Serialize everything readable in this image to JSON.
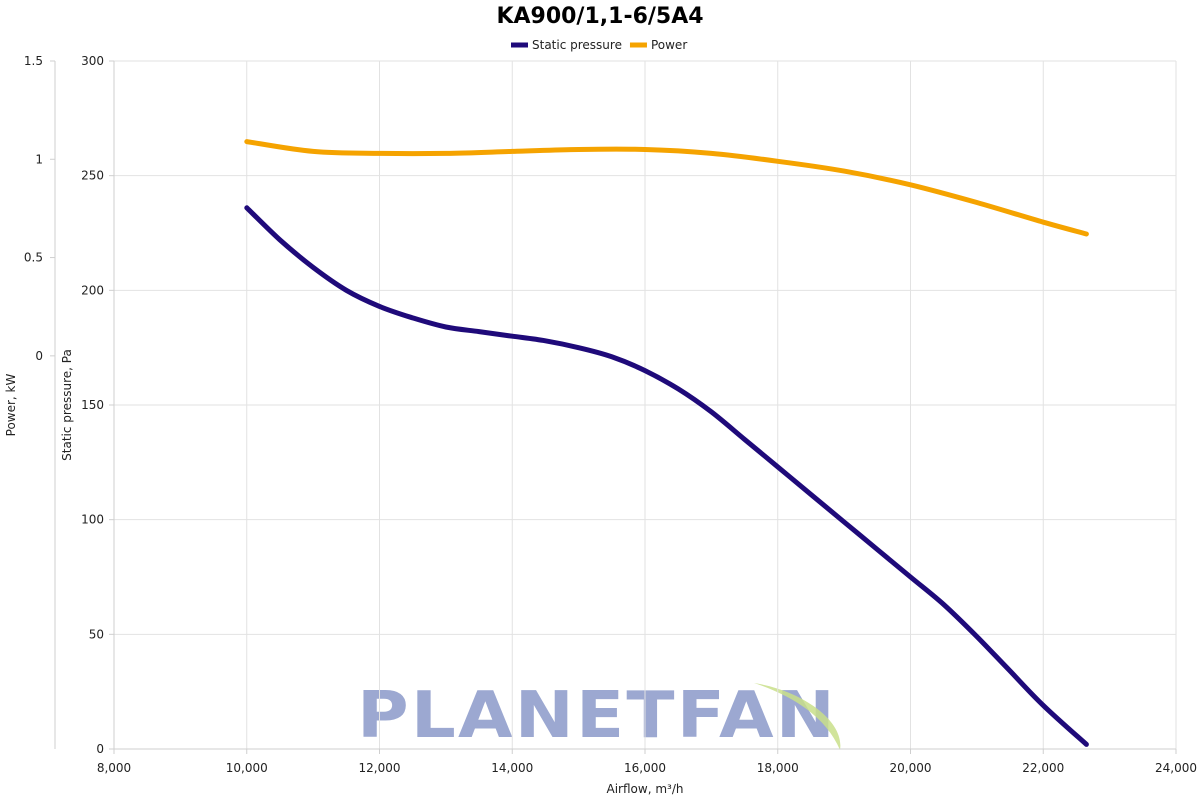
{
  "chart_data": {
    "type": "line",
    "title": "KA900/1,1-6/5A4",
    "xlabel": "Airflow, m³/h",
    "xlim": [
      8000,
      24000
    ],
    "xticks": [
      8000,
      10000,
      12000,
      14000,
      16000,
      18000,
      20000,
      22000,
      24000
    ],
    "xtick_labels": [
      "8,000",
      "10,000",
      "12,000",
      "14,000",
      "16,000",
      "18,000",
      "20,000",
      "22,000",
      "24,000"
    ],
    "y_axes": {
      "pressure": {
        "label": "Static pressure, Pa",
        "ylim": [
          0,
          300
        ],
        "ticks": [
          0,
          50,
          100,
          150,
          200,
          250,
          300
        ],
        "tick_labels": [
          "0",
          "50",
          "100",
          "150",
          "200",
          "250",
          "300"
        ]
      },
      "power": {
        "label": "Power, kW",
        "ylim": [
          -2,
          1.5
        ],
        "ticks": [
          0,
          0.5,
          1,
          1.5
        ],
        "tick_labels": [
          "0",
          "0.5",
          "1",
          "1.5"
        ]
      }
    },
    "legend_position": "top-center",
    "grid": true,
    "series": [
      {
        "name": "Static pressure",
        "axis": "pressure",
        "color": "#1f0a7a",
        "x": [
          10000,
          10500,
          11000,
          11500,
          12000,
          12500,
          13000,
          13500,
          14000,
          14500,
          15000,
          15500,
          16000,
          16500,
          17000,
          17500,
          18000,
          18500,
          19000,
          19500,
          20000,
          20500,
          21000,
          21500,
          22000,
          22650
        ],
        "y": [
          236,
          222,
          210,
          200,
          193,
          188,
          184,
          182,
          180,
          178,
          175,
          171,
          165,
          157,
          147,
          135,
          123,
          111,
          99,
          87,
          75,
          63,
          49,
          34,
          19,
          2
        ]
      },
      {
        "name": "Power",
        "axis": "power",
        "color": "#f5a300",
        "x": [
          10000,
          11000,
          12000,
          13000,
          14000,
          15000,
          16000,
          17000,
          18000,
          19000,
          20000,
          21000,
          22000,
          22650
        ],
        "y": [
          1.09,
          1.04,
          1.03,
          1.03,
          1.04,
          1.05,
          1.05,
          1.03,
          0.99,
          0.94,
          0.87,
          0.78,
          0.68,
          0.62
        ]
      }
    ]
  },
  "watermark": {
    "brand": "PLANETFAN",
    "leaf_color": "#c9df8a"
  }
}
